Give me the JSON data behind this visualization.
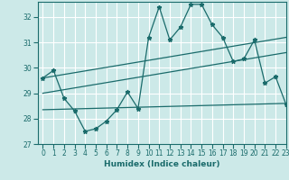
{
  "title": "",
  "xlabel": "Humidex (Indice chaleur)",
  "xlim": [
    -0.5,
    23
  ],
  "ylim": [
    27,
    32.6
  ],
  "yticks": [
    27,
    28,
    29,
    30,
    31,
    32
  ],
  "xticks": [
    0,
    1,
    2,
    3,
    4,
    5,
    6,
    7,
    8,
    9,
    10,
    11,
    12,
    13,
    14,
    15,
    16,
    17,
    18,
    19,
    20,
    21,
    22,
    23
  ],
  "bg_color": "#cce9e8",
  "grid_color": "#ffffff",
  "line_color": "#1a6b6b",
  "line1_x": [
    0,
    1,
    2,
    3,
    4,
    5,
    6,
    7,
    8,
    9,
    10,
    11,
    12,
    13,
    14,
    15,
    16,
    17,
    18,
    19,
    20,
    21,
    22,
    23
  ],
  "line1_y": [
    29.6,
    29.9,
    28.8,
    28.3,
    27.5,
    27.6,
    27.9,
    28.35,
    29.05,
    28.4,
    31.2,
    32.4,
    31.1,
    31.6,
    32.5,
    32.5,
    31.7,
    31.2,
    30.25,
    30.35,
    31.1,
    29.4,
    29.65,
    28.55
  ],
  "line2_x": [
    0,
    23
  ],
  "line2_y": [
    29.6,
    31.2
  ],
  "line3_x": [
    0,
    23
  ],
  "line3_y": [
    29.0,
    30.6
  ],
  "line4_x": [
    0,
    23
  ],
  "line4_y": [
    28.35,
    28.6
  ]
}
